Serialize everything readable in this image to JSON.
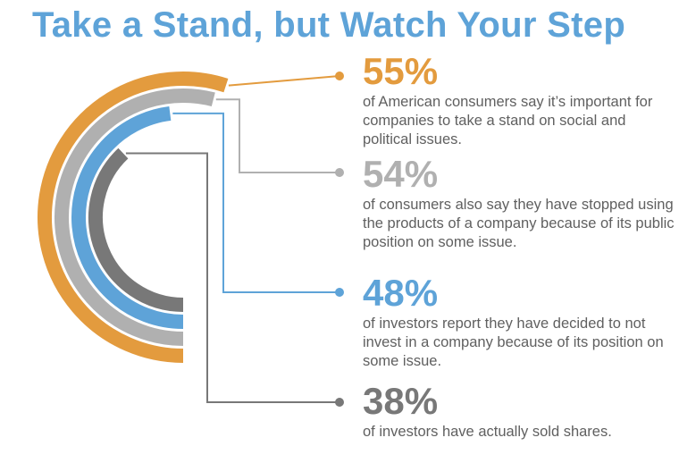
{
  "title": "Take a Stand, but Watch Your Step",
  "colors": {
    "title": "#5ea3d8",
    "orange": "#e39b3e",
    "light_gray": "#b0b0b0",
    "blue": "#5ea3d8",
    "dark_gray": "#787878",
    "text": "#606060"
  },
  "chart_data": {
    "type": "radial-bar",
    "title": "Take a Stand, but Watch Your Step",
    "unit": "%",
    "series": [
      {
        "name": "American consumers: important for companies to take a stand on social and political issues",
        "value": 55,
        "label": "55%",
        "desc": "of American consumers say it’s important for companies to take a stand on social and political issues.",
        "color": "#e39b3e"
      },
      {
        "name": "Consumers who stopped using products of a company because of its public position",
        "value": 54,
        "label": "54%",
        "desc": "of consumers also say they have stopped using the products of a company because of its public position on some issue.",
        "color": "#b0b0b0"
      },
      {
        "name": "Investors who decided not to invest in a company because of its position",
        "value": 48,
        "label": "48%",
        "desc": "of investors report they have decided to not invest in a company because of its position on some issue.",
        "color": "#5ea3d8"
      },
      {
        "name": "Investors who have actually sold shares",
        "value": 38,
        "label": "38%",
        "desc": "of investors have actually sold shares.",
        "color": "#787878"
      }
    ]
  }
}
